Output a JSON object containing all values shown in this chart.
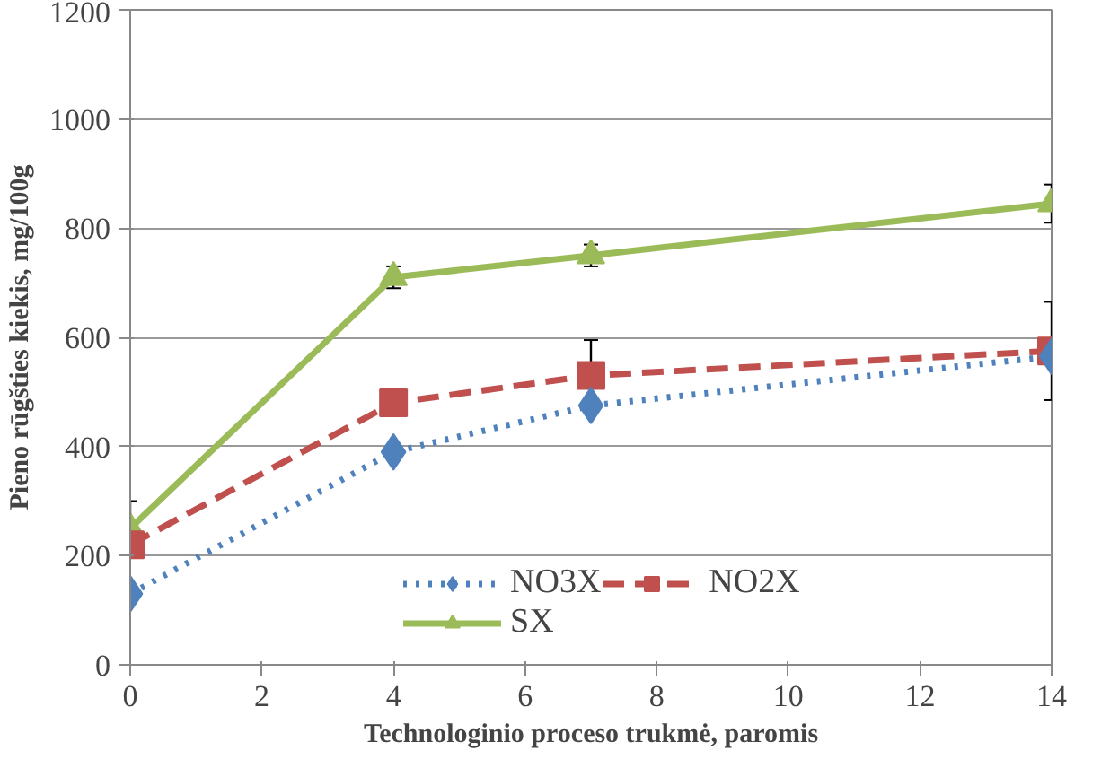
{
  "chart_data": {
    "type": "line",
    "xlabel": "Technologinio proceso trukmė, paromis",
    "ylabel": "Pieno rūgšties kiekis, mg/100g",
    "x": [
      0,
      4,
      7,
      14
    ],
    "xlim": [
      0,
      14
    ],
    "xticks": [
      0,
      2,
      4,
      6,
      8,
      10,
      12,
      14
    ],
    "ylim": [
      0,
      1200
    ],
    "yticks": [
      0,
      200,
      400,
      600,
      800,
      1000,
      1200
    ],
    "grid": "y",
    "legend": "bottom",
    "series": [
      {
        "name": "NO3X",
        "color": "#4f81bd",
        "values": [
          130,
          390,
          475,
          565
        ],
        "marker": "diamond",
        "line_style": "dotted"
      },
      {
        "name": "NO2X",
        "color": "#c0504d",
        "values": [
          220,
          480,
          530,
          575
        ],
        "marker": "square",
        "line_style": "dashed",
        "errors": [
          null,
          null,
          65,
          90
        ]
      },
      {
        "name": "SX",
        "color": "#9bbb59",
        "values": [
          250,
          710,
          750,
          845
        ],
        "marker": "triangle",
        "line_style": "solid",
        "errors": [
          50,
          20,
          20,
          35
        ]
      }
    ]
  }
}
